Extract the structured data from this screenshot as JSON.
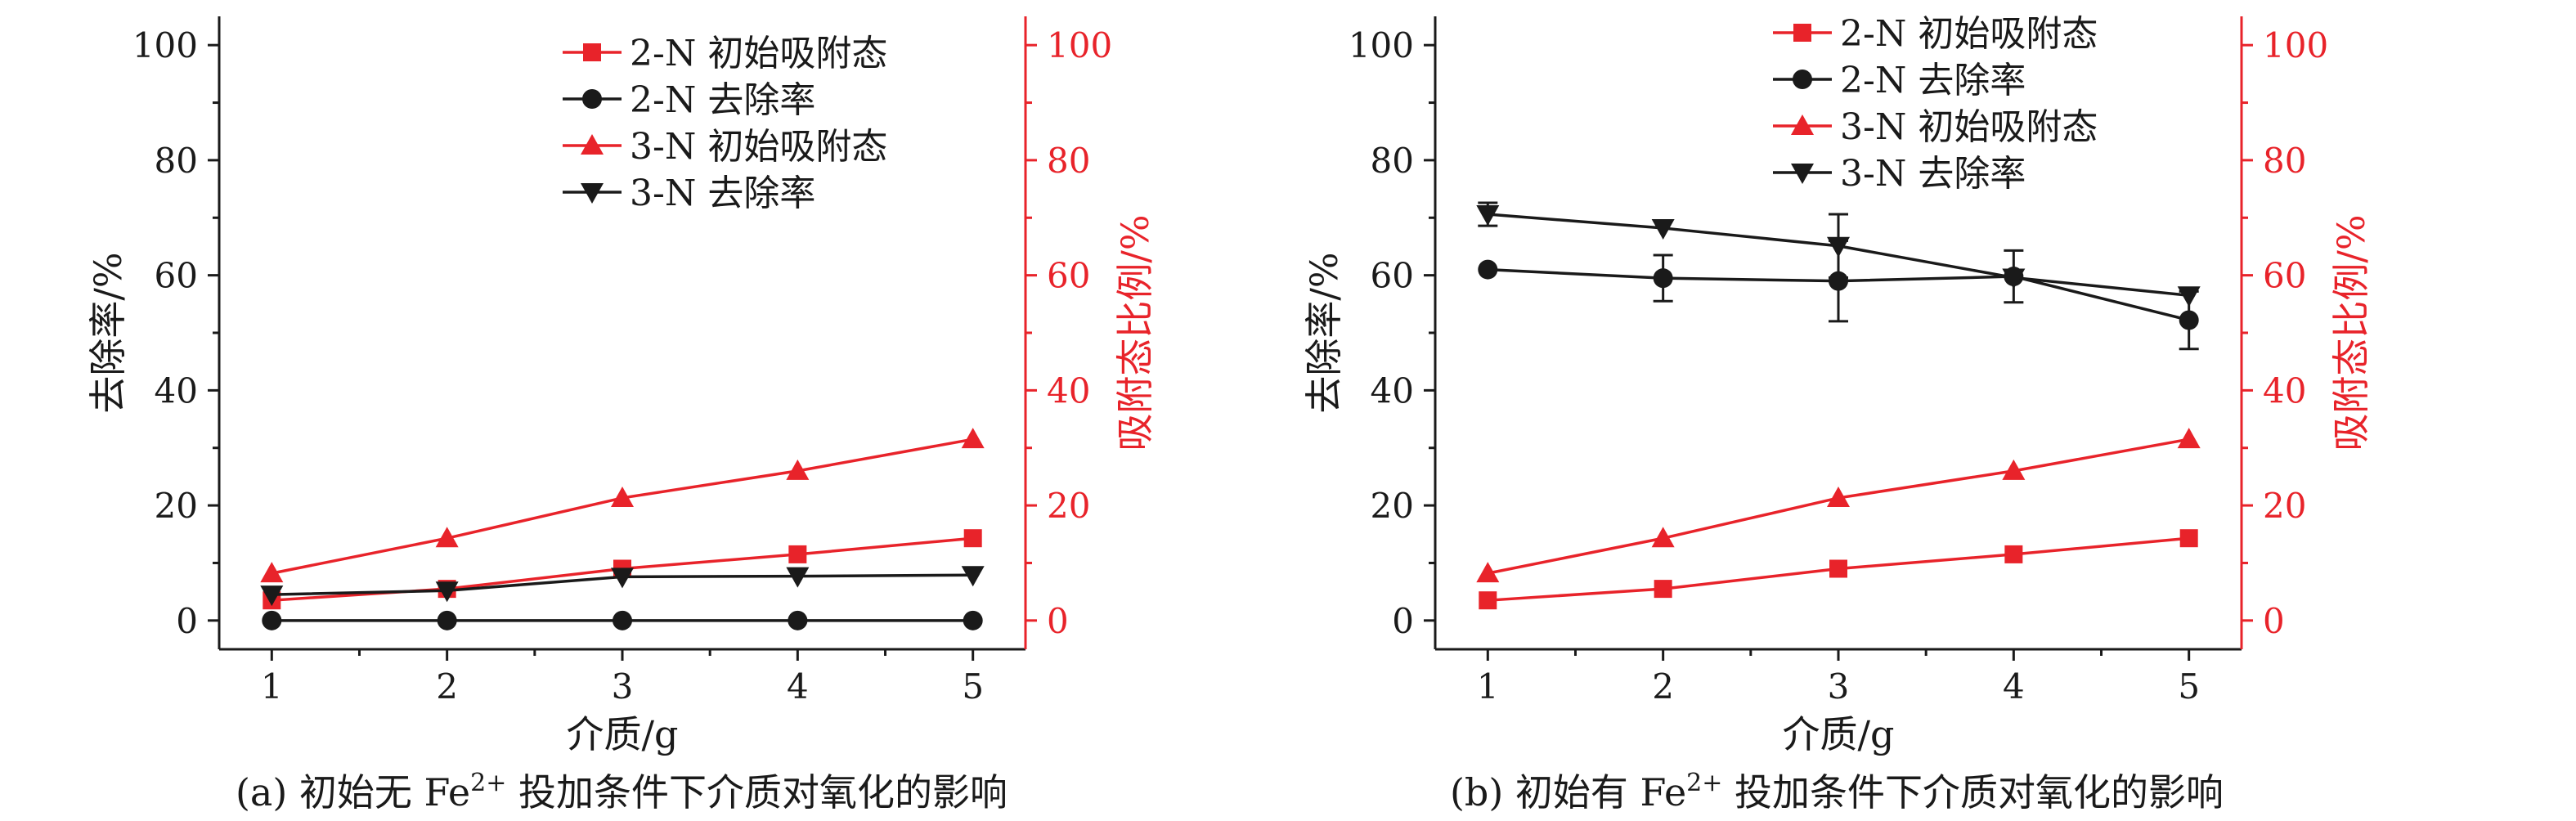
{
  "figure": {
    "panels": [
      {
        "caption_prefix": "(a) 初始无 Fe",
        "caption_sup": "2+",
        "caption_suffix": " 投加条件下介质对氧化的影响"
      },
      {
        "caption_prefix": "(b) 初始有 Fe",
        "caption_sup": "2+",
        "caption_suffix": " 投加条件下介质对氧化的影响"
      }
    ]
  },
  "colors": {
    "black": "#1a1a1a",
    "red": "#e8232a"
  },
  "chart_data": [
    {
      "type": "line",
      "x": [
        1,
        2,
        3,
        4,
        5
      ],
      "xlabel": "介质/g",
      "ylabel_left": "去除率/%",
      "ylabel_right": "吸附态比例/%",
      "xlim": [
        0.7,
        5.3
      ],
      "ylim_left": [
        -5,
        105
      ],
      "ylim_right": [
        -5,
        105
      ],
      "yticks": [
        0,
        20,
        40,
        60,
        80,
        100
      ],
      "legend_position": "top-right",
      "series": [
        {
          "name": "2-N 初始吸附态",
          "axis": "right",
          "color": "red",
          "marker": "square",
          "values": [
            3.5,
            5.5,
            9.0,
            11.5,
            14.3
          ]
        },
        {
          "name": "2-N 去除率",
          "axis": "left",
          "color": "black",
          "marker": "circle",
          "values": [
            0,
            0,
            0,
            0,
            0
          ]
        },
        {
          "name": "3-N 初始吸附态",
          "axis": "right",
          "color": "red",
          "marker": "triangle-up",
          "values": [
            8.2,
            14.3,
            21.3,
            26.0,
            31.5
          ]
        },
        {
          "name": "3-N 去除率",
          "axis": "left",
          "color": "black",
          "marker": "triangle-down",
          "values": [
            4.5,
            5.2,
            7.6,
            7.7,
            7.9
          ]
        }
      ]
    },
    {
      "type": "line",
      "x": [
        1,
        2,
        3,
        4,
        5
      ],
      "xlabel": "介质/g",
      "ylabel_left": "去除率/%",
      "ylabel_right": "吸附态比例/%",
      "xlim": [
        0.7,
        5.3
      ],
      "ylim_left": [
        -5,
        105
      ],
      "ylim_right": [
        -5,
        105
      ],
      "yticks": [
        0,
        20,
        40,
        60,
        80,
        100
      ],
      "legend_position": "top-right",
      "series": [
        {
          "name": "2-N 初始吸附态",
          "axis": "right",
          "color": "red",
          "marker": "square",
          "values": [
            3.5,
            5.5,
            9.0,
            11.5,
            14.3
          ]
        },
        {
          "name": "2-N 去除率",
          "axis": "left",
          "color": "black",
          "marker": "circle",
          "values": [
            61.0,
            59.5,
            59.0,
            59.8,
            52.2
          ],
          "error": [
            0,
            4.0,
            7.0,
            4.5,
            5.0
          ]
        },
        {
          "name": "3-N 初始吸附态",
          "axis": "right",
          "color": "red",
          "marker": "triangle-up",
          "values": [
            8.2,
            14.3,
            21.3,
            26.0,
            31.5
          ]
        },
        {
          "name": "3-N 去除率",
          "axis": "left",
          "color": "black",
          "marker": "triangle-down",
          "values": [
            70.6,
            68.2,
            65.1,
            59.6,
            56.5
          ],
          "error": [
            2.0,
            0,
            5.5,
            0,
            0
          ]
        }
      ]
    }
  ]
}
